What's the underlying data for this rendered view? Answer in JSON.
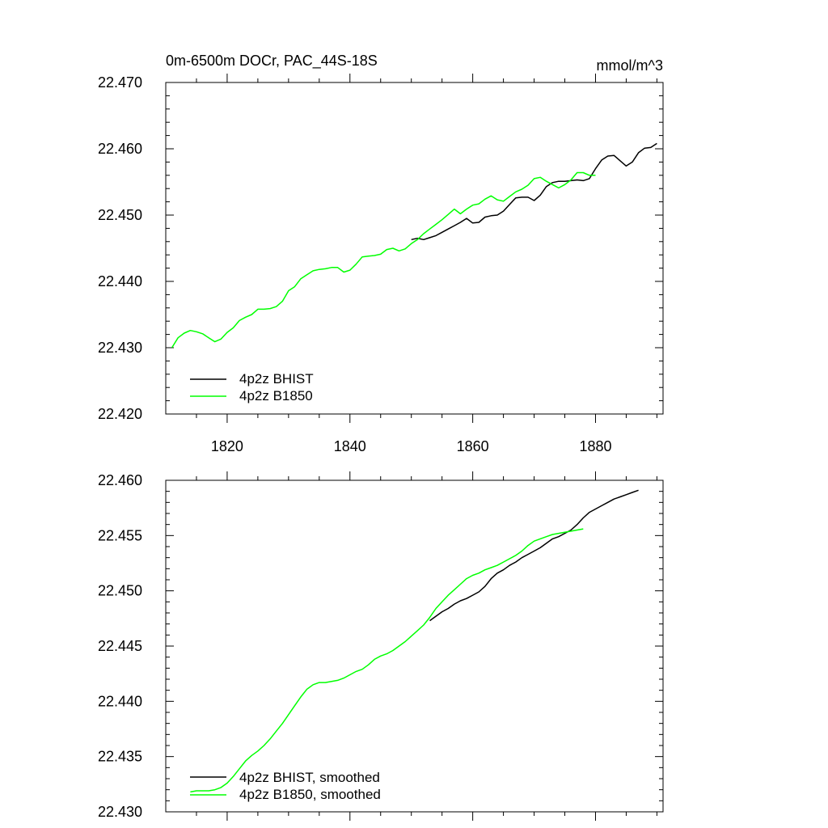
{
  "chart_data": [
    {
      "type": "line",
      "title": "0m-6500m DOCr, PAC_44S-18S",
      "units": "mmol/m^3",
      "xlim": [
        1810,
        1891
      ],
      "ylim": [
        22.42,
        22.47
      ],
      "xticks": [
        1820,
        1840,
        1860,
        1880
      ],
      "xtick_labels": [
        "1820",
        "1840",
        "1860",
        "1880"
      ],
      "yticks": [
        22.42,
        22.43,
        22.44,
        22.45,
        22.46,
        22.47
      ],
      "ytick_labels": [
        "22.420",
        "22.430",
        "22.440",
        "22.450",
        "22.460",
        "22.470"
      ],
      "grid": false,
      "legend_position": "bottom-left",
      "series": [
        {
          "name": "4p2z BHIST",
          "color": "#000000",
          "x": [
            1850,
            1851,
            1852,
            1853,
            1854,
            1855,
            1856,
            1857,
            1858,
            1859,
            1860,
            1861,
            1862,
            1863,
            1864,
            1865,
            1866,
            1867,
            1868,
            1869,
            1870,
            1871,
            1872,
            1873,
            1874,
            1875,
            1876,
            1877,
            1878,
            1879,
            1880,
            1881,
            1882,
            1883,
            1884,
            1885,
            1886,
            1887,
            1888,
            1889,
            1890
          ],
          "y": [
            22.4463,
            22.4465,
            22.4463,
            22.4466,
            22.4469,
            22.4474,
            22.4479,
            22.4484,
            22.4489,
            22.4495,
            22.4488,
            22.4489,
            22.4497,
            22.4499,
            22.45,
            22.4506,
            22.4516,
            22.4526,
            22.4527,
            22.4527,
            22.4522,
            22.453,
            22.4543,
            22.4549,
            22.4551,
            22.4551,
            22.4552,
            22.4553,
            22.4552,
            22.4555,
            22.457,
            22.4583,
            22.4589,
            22.459,
            22.4582,
            22.4574,
            22.458,
            22.4594,
            22.4601,
            22.4602,
            22.4608
          ]
        },
        {
          "name": "4p2z B1850",
          "color": "#00ff00",
          "x": [
            1811,
            1812,
            1813,
            1814,
            1815,
            1816,
            1817,
            1818,
            1819,
            1820,
            1821,
            1822,
            1823,
            1824,
            1825,
            1826,
            1827,
            1828,
            1829,
            1830,
            1831,
            1832,
            1833,
            1834,
            1835,
            1836,
            1837,
            1838,
            1839,
            1840,
            1841,
            1842,
            1843,
            1844,
            1845,
            1846,
            1847,
            1848,
            1849,
            1850,
            1851,
            1852,
            1853,
            1854,
            1855,
            1856,
            1857,
            1858,
            1859,
            1860,
            1861,
            1862,
            1863,
            1864,
            1865,
            1866,
            1867,
            1868,
            1869,
            1870,
            1871,
            1872,
            1873,
            1874,
            1875,
            1876,
            1877,
            1878,
            1879,
            1880
          ],
          "y": [
            22.43,
            22.4315,
            22.4322,
            22.4326,
            22.4324,
            22.4321,
            22.4315,
            22.4309,
            22.4313,
            22.4323,
            22.433,
            22.4341,
            22.4346,
            22.435,
            22.4358,
            22.4358,
            22.4359,
            22.4362,
            22.437,
            22.4386,
            22.4392,
            22.4404,
            22.441,
            22.4416,
            22.4418,
            22.4419,
            22.4421,
            22.4421,
            22.4414,
            22.4417,
            22.4426,
            22.4437,
            22.4438,
            22.4439,
            22.4441,
            22.4448,
            22.445,
            22.4446,
            22.4449,
            22.4457,
            22.4463,
            22.4472,
            22.4479,
            22.4486,
            22.4493,
            22.4501,
            22.4509,
            22.4502,
            22.4509,
            22.4515,
            22.4517,
            22.4524,
            22.4529,
            22.4523,
            22.4521,
            22.4528,
            22.4535,
            22.4539,
            22.4545,
            22.4555,
            22.4557,
            22.4551,
            22.4546,
            22.4541,
            22.4546,
            22.4553,
            22.4564,
            22.4564,
            22.456,
            22.456
          ]
        }
      ]
    },
    {
      "type": "line",
      "title": "",
      "xlim": [
        1810,
        1891
      ],
      "ylim": [
        22.43,
        22.46
      ],
      "xticks": [
        1820,
        1840,
        1860,
        1880
      ],
      "yticks": [
        22.43,
        22.435,
        22.44,
        22.445,
        22.45,
        22.455,
        22.46
      ],
      "ytick_labels": [
        "22.430",
        "22.435",
        "22.440",
        "22.445",
        "22.450",
        "22.455",
        "22.460"
      ],
      "grid": false,
      "legend_position": "bottom-left",
      "series": [
        {
          "name": "4p2z BHIST, smoothed",
          "color": "#000000",
          "x": [
            1853,
            1854,
            1855,
            1856,
            1857,
            1858,
            1859,
            1860,
            1861,
            1862,
            1863,
            1864,
            1865,
            1866,
            1867,
            1868,
            1869,
            1870,
            1871,
            1872,
            1873,
            1874,
            1875,
            1876,
            1877,
            1878,
            1879,
            1880,
            1881,
            1882,
            1883,
            1884,
            1885,
            1886,
            1887
          ],
          "y": [
            22.4473,
            22.4477,
            22.4481,
            22.4484,
            22.4488,
            22.4491,
            22.4493,
            22.4496,
            22.4499,
            22.4504,
            22.4511,
            22.4516,
            22.4519,
            22.4523,
            22.4526,
            22.453,
            22.4533,
            22.4536,
            22.4539,
            22.4543,
            22.4547,
            22.4549,
            22.4552,
            22.4555,
            22.456,
            22.4566,
            22.4571,
            22.4574,
            22.4577,
            22.458,
            22.4583,
            22.4585,
            22.4587,
            22.4589,
            22.4591
          ]
        },
        {
          "name": "4p2z B1850, smoothed",
          "color": "#00ff00",
          "x": [
            1814,
            1815,
            1816,
            1817,
            1818,
            1819,
            1820,
            1821,
            1822,
            1823,
            1824,
            1825,
            1826,
            1827,
            1828,
            1829,
            1830,
            1831,
            1832,
            1833,
            1834,
            1835,
            1836,
            1837,
            1838,
            1839,
            1840,
            1841,
            1842,
            1843,
            1844,
            1845,
            1846,
            1847,
            1848,
            1849,
            1850,
            1851,
            1852,
            1853,
            1854,
            1855,
            1856,
            1857,
            1858,
            1859,
            1860,
            1861,
            1862,
            1863,
            1864,
            1865,
            1866,
            1867,
            1868,
            1869,
            1870,
            1871,
            1872,
            1873,
            1874,
            1875,
            1876,
            1877,
            1878
          ],
          "y": [
            22.4318,
            22.4319,
            22.4319,
            22.4319,
            22.432,
            22.4322,
            22.4326,
            22.4332,
            22.4339,
            22.4346,
            22.4351,
            22.4355,
            22.436,
            22.4366,
            22.4373,
            22.438,
            22.4388,
            22.4396,
            22.4404,
            22.4411,
            22.4415,
            22.4417,
            22.4417,
            22.4418,
            22.4419,
            22.4421,
            22.4424,
            22.4427,
            22.4429,
            22.4433,
            22.4438,
            22.4441,
            22.4443,
            22.4446,
            22.445,
            22.4454,
            22.4459,
            22.4464,
            22.4469,
            22.4476,
            22.4484,
            22.449,
            22.4496,
            22.4501,
            22.4506,
            22.4511,
            22.4514,
            22.4516,
            22.4519,
            22.4521,
            22.4523,
            22.4526,
            22.4529,
            22.4532,
            22.4536,
            22.4541,
            22.4545,
            22.4547,
            22.4549,
            22.4551,
            22.4552,
            22.4553,
            22.4554,
            22.4555,
            22.4556
          ]
        }
      ]
    }
  ]
}
